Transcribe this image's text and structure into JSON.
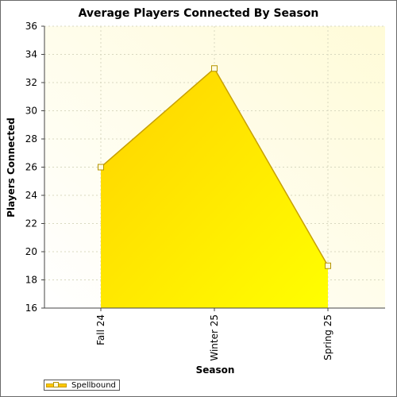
{
  "chart_data": {
    "type": "area",
    "title": "Average Players Connected By Season",
    "xlabel": "Season",
    "ylabel": "Players Connected",
    "categories": [
      "Fall 24",
      "Winter 25",
      "Spring 25"
    ],
    "series": [
      {
        "name": "Spellbound",
        "values": [
          26,
          33,
          19
        ]
      }
    ],
    "ylim": [
      16,
      36
    ],
    "yticks": [
      16,
      18,
      20,
      22,
      24,
      26,
      28,
      30,
      32,
      34,
      36
    ],
    "grid": true,
    "legend": "bottom-left",
    "colors": {
      "area_top": "#ffd700",
      "area_bottom": "#ffff00",
      "line": "#c8a000",
      "plot_background": "#ffffe8"
    }
  }
}
